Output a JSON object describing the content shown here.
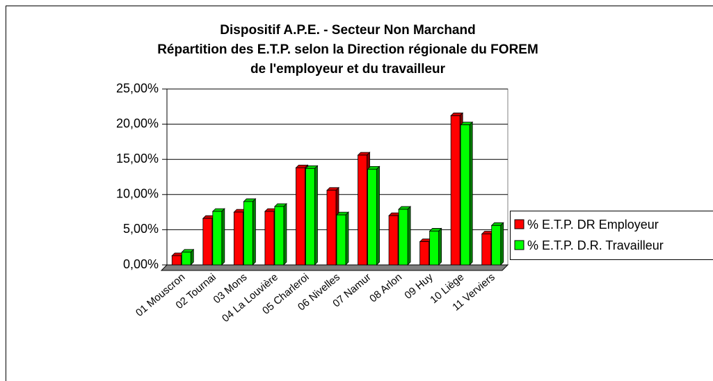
{
  "chart_data": {
    "type": "bar3d",
    "title": [
      "Dispositif A.P.E. - Secteur Non Marchand",
      "Répartition des E.T.P. selon la Direction régionale du FOREM",
      "de l'employeur et du travailleur"
    ],
    "categories": [
      "01 Mouscron",
      "02 Tournai",
      "03 Mons",
      "04 La Louvière",
      "05 Charleroi",
      "06 Nivelles",
      "07 Namur",
      "08 Arlon",
      "09 Huy",
      "10 Liège",
      "11 Verviers"
    ],
    "series": [
      {
        "name": "% E.T.P. DR Employeur",
        "color": "#ff0000",
        "values": [
          1.3,
          6.6,
          7.5,
          7.6,
          13.8,
          10.6,
          15.6,
          7.0,
          3.3,
          21.2,
          4.4
        ]
      },
      {
        "name": "% E.T.P. D.R. Travailleur",
        "color": "#00ff00",
        "values": [
          1.8,
          7.6,
          9.0,
          8.3,
          13.7,
          7.1,
          13.6,
          7.9,
          4.8,
          19.9,
          5.6
        ]
      }
    ],
    "ylim": [
      0,
      25
    ],
    "yticks": [
      {
        "value": 0,
        "label": "0,00%"
      },
      {
        "value": 5,
        "label": "5,00%"
      },
      {
        "value": 10,
        "label": "10,00%"
      },
      {
        "value": 15,
        "label": "15,00%"
      },
      {
        "value": 20,
        "label": "20,00%"
      },
      {
        "value": 25,
        "label": "25,00%"
      }
    ],
    "grid": true,
    "legend": "right"
  }
}
